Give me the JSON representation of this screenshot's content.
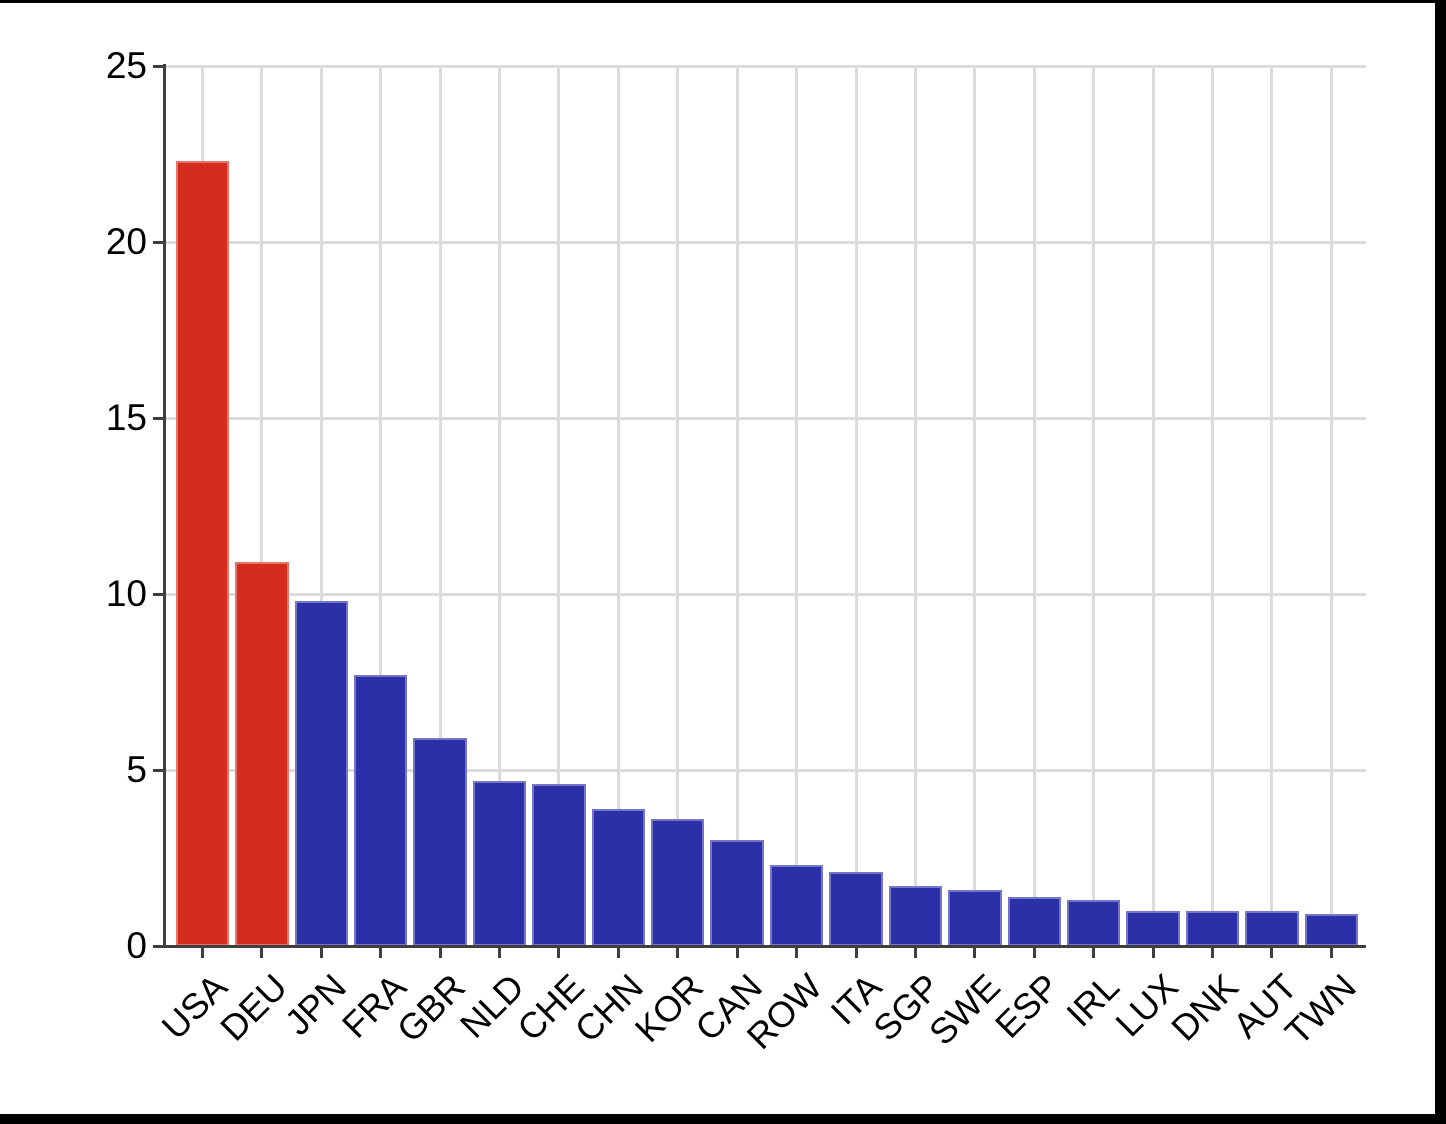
{
  "window": {
    "background": "#ffffff",
    "border_color": "#000000"
  },
  "chart_data": {
    "type": "bar",
    "title": "",
    "xlabel": "",
    "ylabel": "",
    "categories": [
      "USA",
      "DEU",
      "JPN",
      "FRA",
      "GBR",
      "NLD",
      "CHE",
      "CHN",
      "KOR",
      "CAN",
      "ROW",
      "ITA",
      "SGP",
      "SWE",
      "ESP",
      "IRL",
      "LUX",
      "DNK",
      "AUT",
      "TWN"
    ],
    "values": [
      22.3,
      10.9,
      9.8,
      7.7,
      5.9,
      4.7,
      4.6,
      3.9,
      3.6,
      3.0,
      2.3,
      2.1,
      1.7,
      1.6,
      1.4,
      1.3,
      1.0,
      1.0,
      1.0,
      0.9
    ],
    "highlighted_categories": [
      "USA",
      "DEU"
    ],
    "ylim": [
      0,
      25
    ],
    "yticks": [
      0,
      5,
      10,
      15,
      20,
      25
    ],
    "grid": "both",
    "legend": "none",
    "colors": {
      "bar_default": "#2b2fa8",
      "bar_highlight": "#d42d1d",
      "gridline": "#dcdcdc",
      "axis": "#3f3f3f",
      "tick_label": "#000000"
    }
  }
}
